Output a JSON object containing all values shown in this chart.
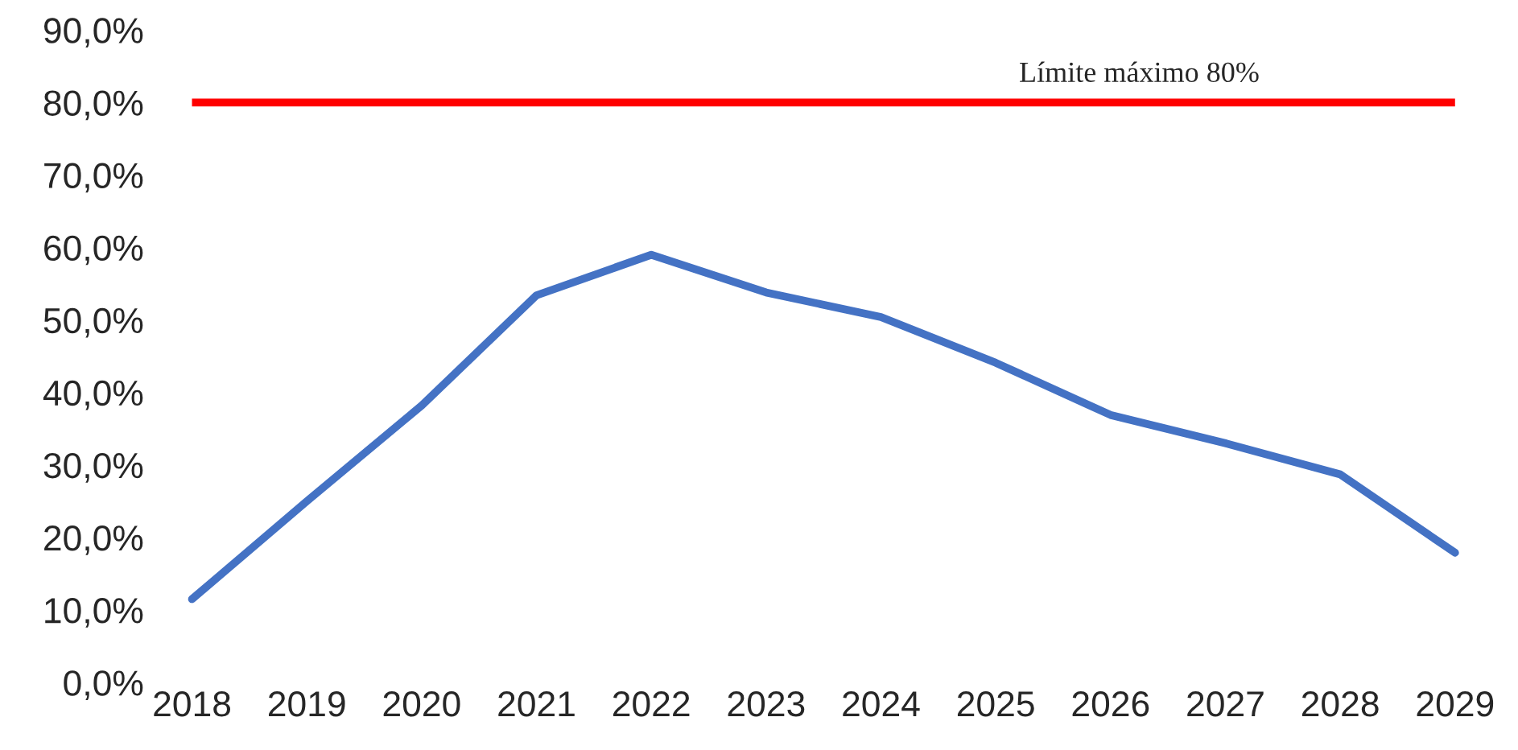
{
  "chart_data": {
    "type": "line",
    "categories": [
      "2018",
      "2019",
      "2020",
      "2021",
      "2022",
      "2023",
      "2024",
      "2025",
      "2026",
      "2027",
      "2028",
      "2029"
    ],
    "series": [
      {
        "color": "#4472c4",
        "values": [
          11.5,
          25.0,
          38.2,
          53.4,
          59.0,
          53.8,
          50.4,
          44.1,
          36.9,
          33.0,
          28.7,
          17.9
        ]
      }
    ],
    "ylim": [
      0,
      90
    ],
    "yticks": [
      {
        "value": 0,
        "label": "0,0%"
      },
      {
        "value": 10,
        "label": "10,0%"
      },
      {
        "value": 20,
        "label": "20,0%"
      },
      {
        "value": 30,
        "label": "30,0%"
      },
      {
        "value": 40,
        "label": "40,0%"
      },
      {
        "value": 50,
        "label": "50,0%"
      },
      {
        "value": 60,
        "label": "60,0%"
      },
      {
        "value": 70,
        "label": "70,0%"
      },
      {
        "value": 80,
        "label": "80,0%"
      },
      {
        "value": 90,
        "label": "90,0%"
      }
    ],
    "ref_lines": [
      {
        "axis": "y",
        "value": 80,
        "label": "Límite máximo 80%",
        "color": "#ff0000"
      }
    ],
    "grid": false,
    "legend": false
  }
}
